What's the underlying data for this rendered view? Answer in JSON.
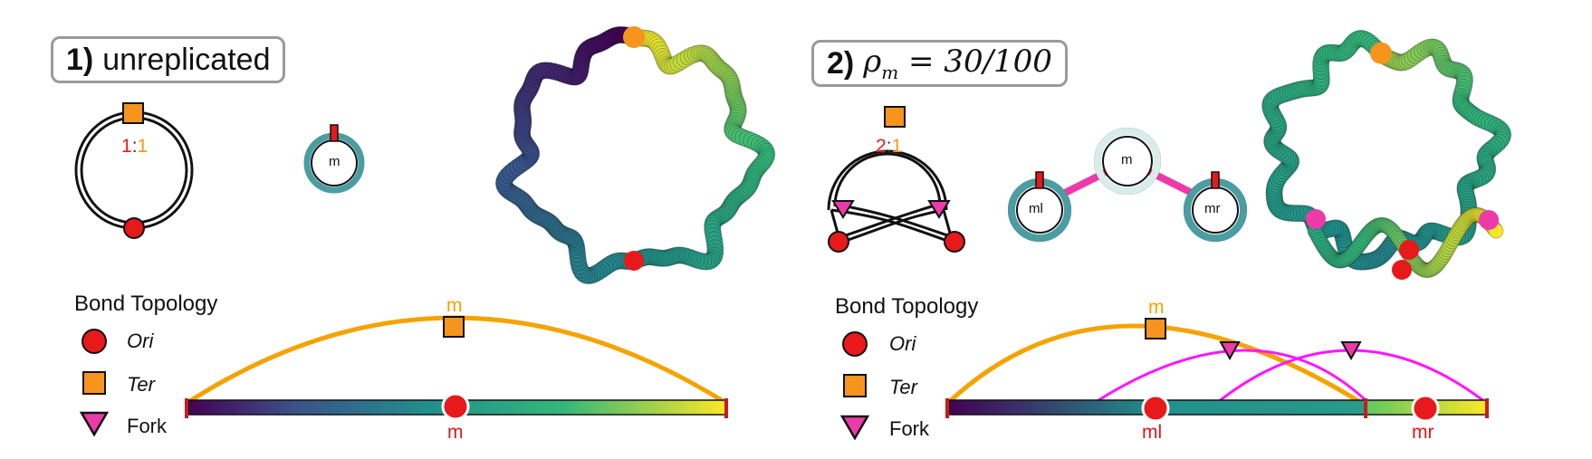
{
  "panels": [
    {
      "number": "1)",
      "title_text": "unreplicated",
      "ratio": {
        "left": "1",
        "sep": ":",
        "right": "1"
      },
      "circle_labels": [
        "m"
      ],
      "legend": {
        "title": "Bond Topology",
        "items": [
          "Ori",
          "Ter",
          "Fork"
        ]
      },
      "arc_label": "m",
      "bar_labels": [
        "m"
      ]
    },
    {
      "number": "2)",
      "title_math": {
        "var": "ρ",
        "sub": "m",
        "rest": " = 30/100"
      },
      "ratio": {
        "left": "2",
        "sep": ":",
        "right": "1"
      },
      "circle_labels": [
        "m",
        "ml",
        "mr"
      ],
      "legend": {
        "title": "Bond Topology",
        "items": [
          "Ori",
          "Ter",
          "Fork"
        ]
      },
      "arc_label": "m",
      "bar_labels": [
        "ml",
        "mr"
      ]
    }
  ],
  "colors": {
    "ori": "#e8191a",
    "ter": "#f7941d",
    "fork": "#ec3aa8",
    "arc_main": "#f5a300",
    "arc_fork": "#ff14ff",
    "ring": "#4a9ea2",
    "connector": "#ec3aa8",
    "title_border": "#9a9a9a"
  }
}
